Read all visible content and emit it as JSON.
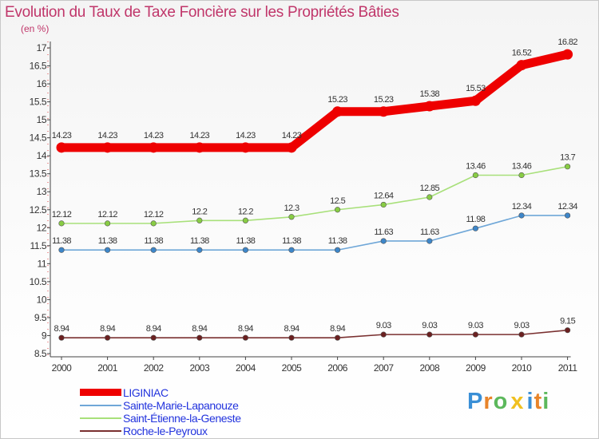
{
  "chart_data": {
    "type": "line",
    "title": "Evolution du Taux de Taxe Foncière sur les Propriétés Bâties",
    "subtitle": "(en %)",
    "xlabel": "",
    "ylabel": "(en %)",
    "categories": [
      "2000",
      "2001",
      "2002",
      "2003",
      "2004",
      "2005",
      "2006",
      "2007",
      "2008",
      "2009",
      "2010",
      "2011"
    ],
    "ylim": [
      8.5,
      17
    ],
    "yticks": [
      "8.5",
      "9",
      "9.5",
      "10",
      "10.5",
      "11",
      "11.5",
      "12",
      "12.5",
      "13",
      "13.5",
      "14",
      "14.5",
      "15",
      "15.5",
      "16",
      "16.5",
      "17"
    ],
    "grid": false,
    "series": [
      {
        "name": "LIGINIAC",
        "color": "#ee0000",
        "marker_color": "#ee0000",
        "width": "thick",
        "values": [
          14.23,
          14.23,
          14.23,
          14.23,
          14.23,
          14.23,
          15.23,
          15.23,
          15.38,
          15.53,
          16.52,
          16.82
        ],
        "labels": [
          "14.23",
          "14.23",
          "14.23",
          "14.23",
          "14.23",
          "14.23",
          "15.23",
          "15.23",
          "15.38",
          "15.53",
          "16.52",
          "16.82"
        ]
      },
      {
        "name": "Sainte-Marie-Lapanouze",
        "color": "#6fa7d8",
        "marker_color": "#3d86c9",
        "width": "thin",
        "values": [
          11.38,
          11.38,
          11.38,
          11.38,
          11.38,
          11.38,
          11.38,
          11.63,
          11.63,
          11.98,
          12.34,
          12.34
        ],
        "labels": [
          "11.38",
          "11.38",
          "11.38",
          "11.38",
          "11.38",
          "11.38",
          "11.38",
          "11.63",
          "11.63",
          "11.98",
          "12.34",
          "12.34"
        ]
      },
      {
        "name": "Saint-Étienne-la-Geneste",
        "color": "#a8e07a",
        "marker_color": "#88cc44",
        "width": "thin",
        "values": [
          12.12,
          12.12,
          12.12,
          12.2,
          12.2,
          12.3,
          12.5,
          12.64,
          12.85,
          13.46,
          13.46,
          13.7
        ],
        "labels": [
          "12.12",
          "12.12",
          "12.12",
          "12.2",
          "12.2",
          "12.3",
          "12.5",
          "12.64",
          "12.85",
          "13.46",
          "13.46",
          "13.7"
        ]
      },
      {
        "name": "Roche-le-Peyroux",
        "color": "#7a3030",
        "marker_color": "#6b2020",
        "width": "thin",
        "values": [
          8.94,
          8.94,
          8.94,
          8.94,
          8.94,
          8.94,
          8.94,
          9.03,
          9.03,
          9.03,
          9.03,
          9.15
        ],
        "labels": [
          "8.94",
          "8.94",
          "8.94",
          "8.94",
          "8.94",
          "8.94",
          "8.94",
          "9.03",
          "9.03",
          "9.03",
          "9.03",
          "9.15"
        ]
      }
    ],
    "legend_position": "bottom-left"
  },
  "brand": {
    "text": "Prox iti",
    "letters": [
      "P",
      "r",
      "o",
      "x",
      "i",
      "t",
      "i"
    ],
    "colors": [
      "#3a8fd6",
      "#e8842a",
      "#5cb85c",
      "#f0c020",
      "#3a8fd6",
      "#e8842a",
      "#5cb85c"
    ]
  }
}
